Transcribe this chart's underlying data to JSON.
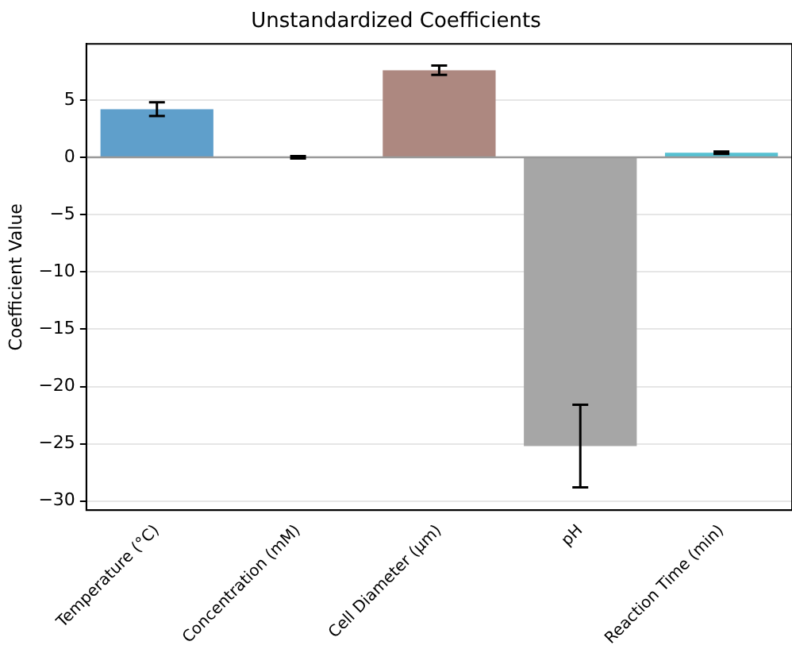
{
  "chart_data": {
    "type": "bar",
    "title": "Unstandardized Coefficients",
    "ylabel": "Coefficient Value",
    "categories": [
      "Temperature (°C)",
      "Concentration (mM)",
      "Cell Diameter (μm)",
      "pH",
      "Reaction Time (min)"
    ],
    "values": [
      4.2,
      0,
      7.6,
      -25.2,
      0.4
    ],
    "colors": [
      "#5f9fcb",
      "#4a9a4a",
      "#ad8880",
      "#a6a6a6",
      "#56c1d2"
    ],
    "errors": [
      0.6,
      0.1,
      0.4,
      3.6,
      0.1
    ],
    "ylim": [
      -30.8,
      9.9
    ],
    "yticks": [
      -30,
      -25,
      -20,
      -15,
      -10,
      -5,
      0,
      5
    ],
    "grid": "y",
    "ref_lines": [
      {
        "axis": "y",
        "value": 0,
        "color": "#999999"
      }
    ]
  }
}
